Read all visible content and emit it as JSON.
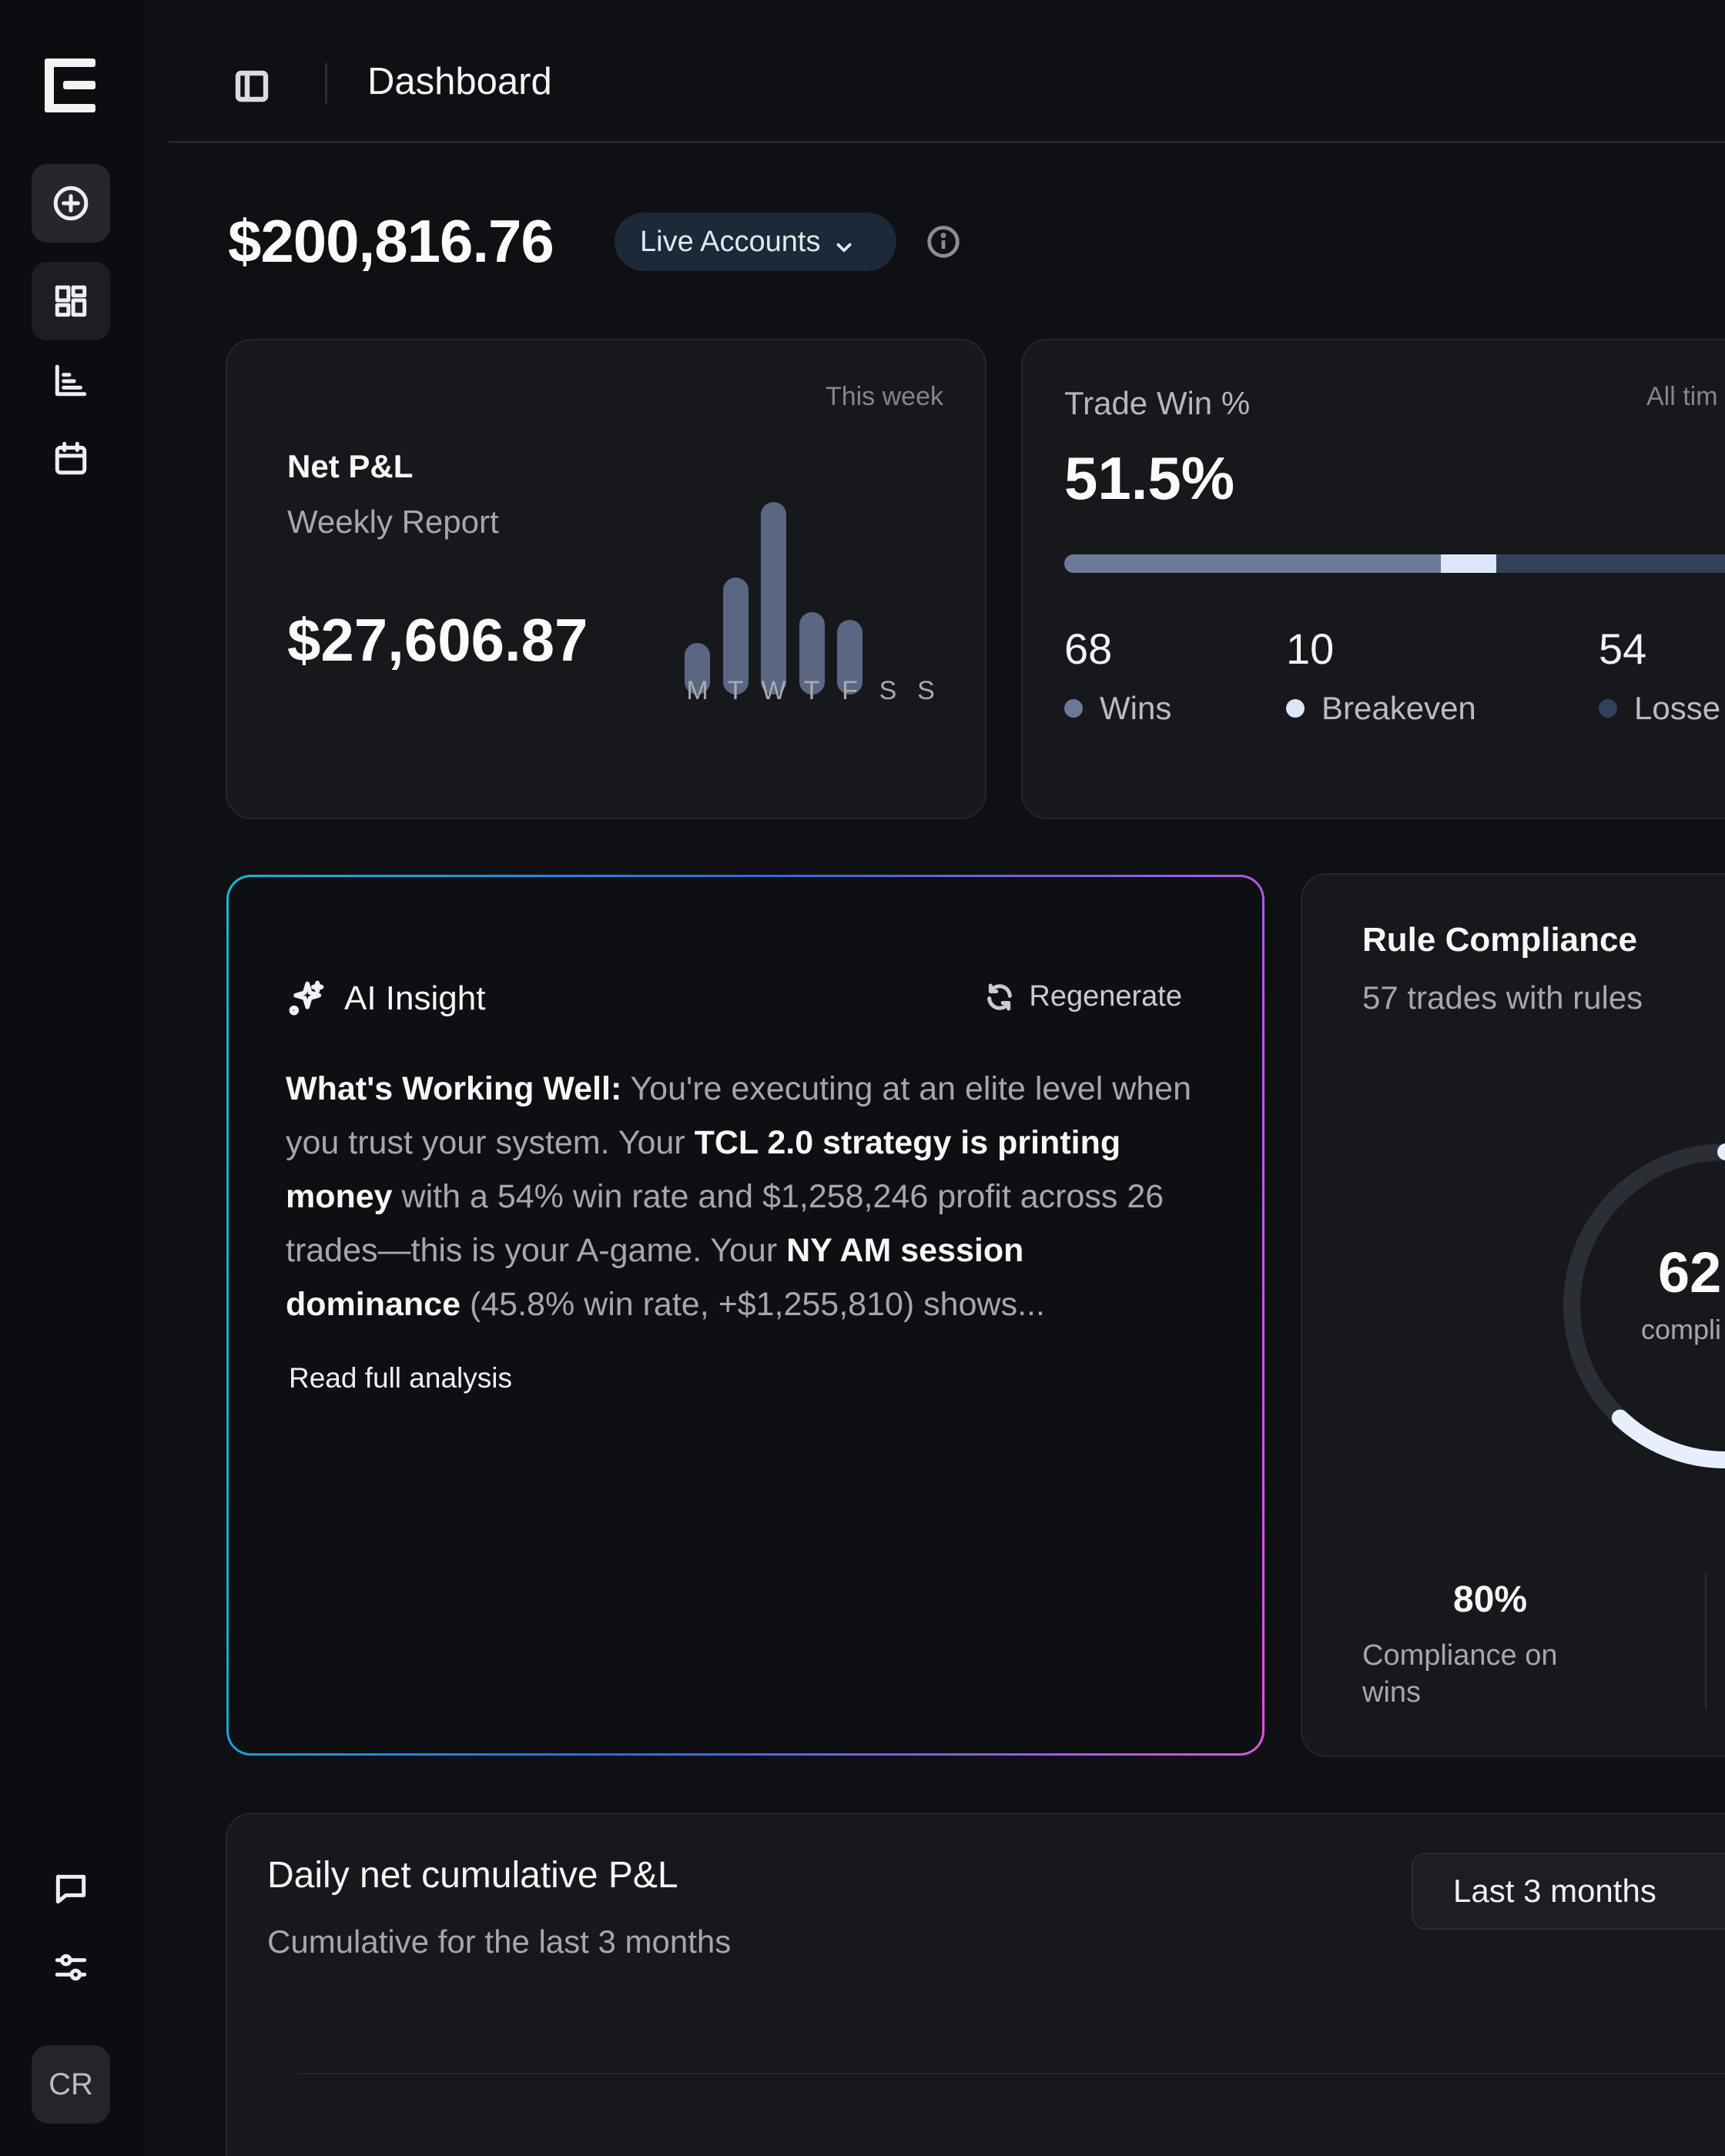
{
  "header": {
    "title": "Dashboard"
  },
  "sidebar": {
    "logo": "logo-icon",
    "items": [
      {
        "icon": "plus-circle-icon"
      },
      {
        "icon": "dashboard-grid-icon"
      },
      {
        "icon": "bar-chart-icon"
      },
      {
        "icon": "calendar-icon"
      }
    ],
    "bottom_items": [
      {
        "icon": "chat-bubble-icon"
      },
      {
        "icon": "sliders-icon"
      }
    ],
    "avatar_initials": "CR"
  },
  "balance": {
    "amount": "$200,816.76",
    "account_selector": "Live Accounts"
  },
  "net_pnl": {
    "period": "This week",
    "title": "Net P&L",
    "subtitle": "Weekly Report",
    "amount": "$27,606.87",
    "chart_data": {
      "type": "bar",
      "categories": [
        "M",
        "T",
        "W",
        "T",
        "F",
        "S",
        "S"
      ],
      "values": [
        0.27,
        0.61,
        1.0,
        0.43,
        0.39,
        0,
        0
      ]
    }
  },
  "trade_win": {
    "title": "Trade Win %",
    "period": "All tim",
    "value": "51.5%",
    "bar": {
      "wins": 68,
      "breakeven": 10,
      "losses": 54
    },
    "stats": [
      {
        "value": "68",
        "label": "Wins",
        "color": "#6c7a99"
      },
      {
        "value": "10",
        "label": "Breakeven",
        "color": "#dbe6fa"
      },
      {
        "value": "54",
        "label": "Losse",
        "color": "#33405a"
      }
    ]
  },
  "ai_insight": {
    "title": "AI Insight",
    "regenerate": "Regenerate",
    "body": [
      {
        "text": "What's Working Well:",
        "bold": true
      },
      {
        "text": " You're executing at an elite level when you trust your system. Your ",
        "bold": false
      },
      {
        "text": "TCL 2.0 strategy is printing money",
        "bold": true
      },
      {
        "text": " with a 54% win rate and $1,258,246 profit across 26 trades—this is your A-game. Your ",
        "bold": false
      },
      {
        "text": "NY AM session dominance",
        "bold": true
      },
      {
        "text": " (45.8% win rate, +$1,255,810) shows...",
        "bold": false
      }
    ],
    "read_more": "Read full analysis",
    "border_colors": [
      "#16b7d3",
      "#2b6ae8",
      "#8a5cf0",
      "#d857df"
    ]
  },
  "rule_compliance": {
    "title": "Rule Compliance",
    "subtitle": "57 trades with rules",
    "score": "62",
    "score_label": "compli",
    "score_fraction": 0.62,
    "wins_compliance_value": "80%",
    "wins_compliance_label": "Compliance on wins"
  },
  "daily_pnl": {
    "title": "Daily net cumulative P&L",
    "subtitle": "Cumulative for the last 3 months",
    "range": "Last 3 months"
  }
}
